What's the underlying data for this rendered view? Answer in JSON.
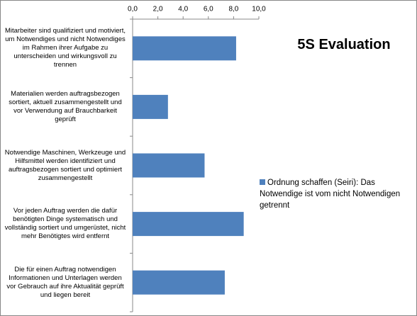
{
  "chart_data": {
    "type": "bar",
    "orientation": "horizontal",
    "title": "5S Evaluation",
    "categories": [
      "Mitarbeiter sind qualifiziert und motiviert, um Notwendiges und nicht Notwendiges im Rahmen ihrer  Aufgabe zu unterscheiden und wirkungsvoll zu trennen",
      "Materialien werden auftragsbezogen sortiert, aktuell zusammengestellt und vor Verwendung auf Brauchbarkeit geprüft",
      "Notwendige Maschinen, Werkzeuge und Hilfsmittel werden identifiziert und auftragsbezogen sortiert und optimiert zusammengestellt",
      "Vor jeden Auftrag werden die dafür benötigten Dinge systematisch und vollständig sortiert und umgerüstet, nicht mehr Benötigtes wird entfernt",
      "Die für einen Auftrag notwendigen Informationen und Unterlagen werden vor Gebrauch auf ihre Aktualität geprüft und liegen bereit"
    ],
    "series": [
      {
        "name": "Ordnung schaffen (Seiri): Das Notwendige ist vom nicht Notwendigen getrennt",
        "color": "#4f81bd",
        "values": [
          8.2,
          2.8,
          5.7,
          8.8,
          7.3
        ]
      }
    ],
    "xlim": [
      0,
      10
    ],
    "xticks": [
      {
        "value": 0,
        "label": "0,0"
      },
      {
        "value": 2,
        "label": "2,0"
      },
      {
        "value": 4,
        "label": "4,0"
      },
      {
        "value": 6,
        "label": "6,0"
      },
      {
        "value": 8,
        "label": "8,0"
      },
      {
        "value": 10,
        "label": "10,0"
      }
    ],
    "grid": false,
    "legend": "right"
  }
}
